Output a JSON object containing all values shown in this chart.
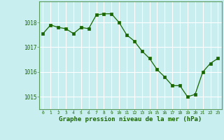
{
  "x": [
    0,
    1,
    2,
    3,
    4,
    5,
    6,
    7,
    8,
    9,
    10,
    11,
    12,
    13,
    14,
    15,
    16,
    17,
    18,
    19,
    20,
    21,
    22,
    23
  ],
  "y": [
    1017.55,
    1017.9,
    1017.8,
    1017.75,
    1017.55,
    1017.8,
    1017.75,
    1018.3,
    1018.35,
    1018.35,
    1018.0,
    1017.5,
    1017.25,
    1016.85,
    1016.55,
    1016.1,
    1015.8,
    1015.45,
    1015.45,
    1015.0,
    1015.1,
    1016.0,
    1016.35,
    1016.55
  ],
  "line_color": "#1a6600",
  "marker_color": "#1a6600",
  "bg_color": "#c8eef0",
  "grid_color": "#ffffff",
  "xlabel": "Graphe pression niveau de la mer (hPa)",
  "xlabel_color": "#1a6600",
  "tick_color": "#1a6600",
  "border_color": "#5a9a5a",
  "ylim": [
    1014.5,
    1018.85
  ],
  "yticks": [
    1015,
    1016,
    1017,
    1018
  ],
  "xlim": [
    -0.5,
    23.5
  ],
  "xticks": [
    0,
    1,
    2,
    3,
    4,
    5,
    6,
    7,
    8,
    9,
    10,
    11,
    12,
    13,
    14,
    15,
    16,
    17,
    18,
    19,
    20,
    21,
    22,
    23
  ],
  "figsize": [
    3.2,
    2.0
  ],
  "dpi": 100
}
